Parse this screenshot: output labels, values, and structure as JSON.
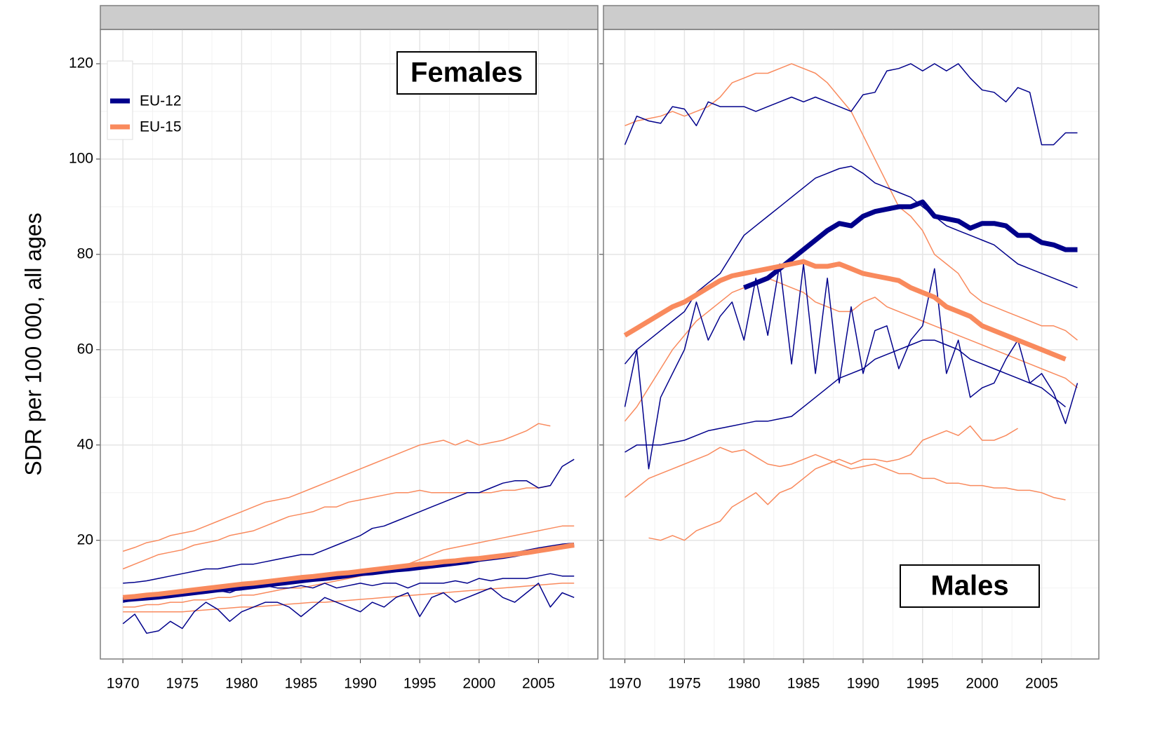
{
  "chart_data": [
    {
      "type": "line",
      "title": "Females",
      "ylabel": "SDR per 100 000,  all ages",
      "x": [
        1970,
        1971,
        1972,
        1973,
        1974,
        1975,
        1976,
        1977,
        1978,
        1979,
        1980,
        1981,
        1982,
        1983,
        1984,
        1985,
        1986,
        1987,
        1988,
        1989,
        1990,
        1991,
        1992,
        1993,
        1994,
        1995,
        1996,
        1997,
        1998,
        1999,
        2000,
        2001,
        2002,
        2003,
        2004,
        2005,
        2006,
        2007,
        2008
      ],
      "xlim": [
        1968.1,
        2010
      ],
      "xticks": [
        1970,
        1975,
        1980,
        1985,
        1990,
        1995,
        2000,
        2005
      ],
      "ylim": [
        -4.9,
        127.2
      ],
      "yticks": [
        20,
        40,
        60,
        80,
        100,
        120
      ],
      "grid": true,
      "legend": "top-left",
      "series": [
        {
          "color": "#f98a5d",
          "line_width": 1.5,
          "values": [
            17.7,
            18.5,
            19.5,
            20,
            21,
            21.5,
            22,
            23,
            24,
            25,
            26,
            27,
            28,
            28.5,
            29,
            30,
            31,
            32,
            33,
            34,
            35,
            36,
            37,
            38,
            39,
            40,
            40.5,
            41,
            40,
            41,
            40,
            40.5,
            41,
            42,
            43,
            44.5,
            44,
            null,
            null
          ]
        },
        {
          "color": "#f98a5d",
          "line_width": 1.5,
          "values": [
            14,
            15,
            16,
            17,
            17.5,
            18,
            19,
            19.5,
            20,
            21,
            21.5,
            22,
            23,
            24,
            25,
            25.5,
            26,
            27,
            27,
            28,
            28.5,
            29,
            29.5,
            30,
            30,
            30.5,
            30,
            30,
            30,
            30,
            30,
            30,
            30.5,
            30.5,
            31,
            31,
            31.5,
            null,
            null
          ]
        },
        {
          "color": "#f98a5d",
          "line_width": 1.5,
          "values": [
            6,
            6,
            6.5,
            6.5,
            7,
            7,
            7.5,
            7.5,
            8,
            8,
            8.5,
            8.5,
            9,
            9.5,
            10,
            10,
            10.5,
            11,
            11.5,
            12,
            12.5,
            13,
            13.5,
            14,
            15,
            16,
            17,
            18,
            18.5,
            19,
            19.5,
            20,
            20.5,
            21,
            21.5,
            22,
            22.5,
            23,
            23
          ]
        },
        {
          "color": "#f98a5d",
          "line_width": 1.5,
          "values": [
            5,
            5,
            5,
            5,
            5,
            5,
            5.2,
            5.4,
            5.6,
            5.8,
            6,
            6,
            6.2,
            6.4,
            6.6,
            6.8,
            7,
            7,
            7.2,
            7.4,
            7.6,
            7.8,
            8,
            8.2,
            8.4,
            8.6,
            8.8,
            9,
            9.2,
            9.4,
            9.6,
            9.8,
            10,
            10.2,
            10.4,
            10.6,
            10.8,
            11,
            11
          ]
        },
        {
          "color": "#00008b",
          "line_width": 1.5,
          "values": [
            11,
            11.2,
            11.5,
            12,
            12.5,
            13,
            13.5,
            14,
            14,
            14.5,
            15,
            15,
            15.5,
            16,
            16.5,
            17,
            17,
            18,
            19,
            20,
            21,
            22.5,
            23,
            24,
            25,
            26,
            27,
            28,
            29,
            30,
            30,
            31,
            32,
            32.5,
            32.5,
            31,
            31.5,
            35.5,
            37
          ]
        },
        {
          "color": "#00008b",
          "line_width": 1.5,
          "values": [
            2.5,
            4.5,
            0.5,
            1,
            3,
            1.5,
            5,
            7,
            5.5,
            3,
            5,
            6,
            7,
            7,
            6,
            4,
            6,
            8,
            7,
            6,
            5,
            7,
            6,
            8,
            9,
            4,
            8,
            9,
            7,
            8,
            9,
            10,
            8,
            7,
            9,
            11,
            6,
            9,
            8
          ]
        },
        {
          "color": "#00008b",
          "line_width": 1.5,
          "values": [
            7,
            7.5,
            8,
            8,
            8.5,
            8.5,
            9,
            9,
            9.5,
            9,
            10,
            10,
            10.5,
            10,
            10,
            10.5,
            10,
            11,
            10,
            10.5,
            11,
            10.5,
            11,
            11,
            10,
            11,
            11,
            11,
            11.5,
            11,
            12,
            11.5,
            12,
            12,
            12,
            12.5,
            13,
            12.5,
            12.5
          ]
        },
        {
          "name": "EU-12",
          "color": "#00008b",
          "line_width": 7,
          "values": [
            7.5,
            7.7,
            7.9,
            8.1,
            8.4,
            8.7,
            9.0,
            9.3,
            9.6,
            9.8,
            10.0,
            10.3,
            10.6,
            10.9,
            11.2,
            11.5,
            11.8,
            12.0,
            12.3,
            12.6,
            13.0,
            13.2,
            13.5,
            13.8,
            14.0,
            14.3,
            14.6,
            14.9,
            15.2,
            15.5,
            16.0,
            16.3,
            16.6,
            17.0,
            17.5,
            18.0,
            18.4,
            18.8,
            19.0
          ]
        },
        {
          "name": "EU-15",
          "color": "#f98a5d",
          "line_width": 7,
          "values": [
            8.0,
            8.2,
            8.5,
            8.7,
            9.0,
            9.3,
            9.6,
            9.9,
            10.2,
            10.5,
            10.8,
            11.0,
            11.3,
            11.6,
            11.9,
            12.2,
            12.4,
            12.7,
            13.0,
            13.2,
            13.5,
            13.8,
            14.1,
            14.4,
            14.7,
            15.0,
            15.2,
            15.5,
            15.7,
            16.0,
            16.2,
            16.5,
            16.8,
            17.1,
            17.4,
            17.8,
            18.2,
            18.6,
            19.0
          ]
        }
      ]
    },
    {
      "type": "line",
      "title": "Males",
      "x": [
        1970,
        1971,
        1972,
        1973,
        1974,
        1975,
        1976,
        1977,
        1978,
        1979,
        1980,
        1981,
        1982,
        1983,
        1984,
        1985,
        1986,
        1987,
        1988,
        1989,
        1990,
        1991,
        1992,
        1993,
        1994,
        1995,
        1996,
        1997,
        1998,
        1999,
        2000,
        2001,
        2002,
        2003,
        2004,
        2005,
        2006,
        2007,
        2008
      ],
      "xlim": [
        1968.2,
        2009.8
      ],
      "xticks": [
        1970,
        1975,
        1980,
        1985,
        1990,
        1995,
        2000,
        2005
      ],
      "ylim": [
        -4.9,
        127.2
      ],
      "yticks": [
        20,
        40,
        60,
        80,
        100,
        120
      ],
      "grid": true,
      "series": [
        {
          "color": "#f98a5d",
          "line_width": 1.5,
          "values": [
            107,
            108,
            108.5,
            109,
            110,
            109,
            110,
            111,
            113,
            116,
            117,
            118,
            118,
            119,
            120,
            119,
            118,
            116,
            113,
            110,
            105,
            100,
            95,
            90,
            88,
            85,
            80,
            78,
            76,
            72,
            70,
            69,
            68,
            67,
            66,
            65,
            65,
            64,
            62
          ]
        },
        {
          "color": "#f98a5d",
          "line_width": 1.5,
          "values": [
            29,
            31,
            33,
            34,
            35,
            36,
            37,
            38,
            39.5,
            38.5,
            39,
            37.5,
            36,
            35.5,
            36,
            37,
            38,
            37,
            36,
            35,
            35.5,
            36,
            35,
            34,
            34,
            33,
            33,
            32,
            32,
            31.5,
            31.5,
            31,
            31,
            30.5,
            30.5,
            30,
            29,
            28.5,
            null
          ]
        },
        {
          "color": "#f98a5d",
          "line_width": 1.5,
          "values": [
            null,
            null,
            20.5,
            20,
            21,
            20,
            22,
            23,
            24,
            27,
            28.5,
            30,
            27.5,
            30,
            31,
            33,
            35,
            36,
            37,
            36,
            37,
            37,
            36.5,
            37,
            38,
            41,
            42,
            43,
            42,
            44,
            41,
            41,
            42,
            43.5,
            null,
            null,
            null,
            null,
            null
          ]
        },
        {
          "color": "#f98a5d",
          "line_width": 1.5,
          "values": [
            45,
            48,
            52,
            56,
            60,
            63,
            66,
            68,
            70,
            72,
            73,
            74,
            75,
            74,
            73,
            72,
            70,
            69,
            68,
            68,
            70,
            71,
            69,
            68,
            67,
            66,
            65,
            64,
            63,
            62,
            61,
            60,
            59,
            58,
            57,
            56,
            55,
            54,
            52
          ]
        },
        {
          "color": "#00008b",
          "line_width": 1.5,
          "values": [
            103,
            109,
            108,
            107.5,
            111,
            110.5,
            107,
            112,
            111,
            111,
            111,
            110,
            111,
            112,
            113,
            112,
            113,
            112,
            111,
            110,
            113.5,
            114,
            118.5,
            119,
            120,
            118.5,
            120,
            118.5,
            120,
            117,
            114.5,
            114,
            112,
            115,
            114,
            103,
            103,
            105.5,
            105.5
          ]
        },
        {
          "color": "#00008b",
          "line_width": 1.5,
          "values": [
            38.5,
            40,
            40,
            40,
            40.5,
            41,
            42,
            43,
            43.5,
            44,
            44.5,
            45,
            45,
            45.5,
            46,
            48,
            50,
            52,
            54,
            55,
            56,
            58,
            59,
            60,
            61,
            62,
            62,
            61,
            60,
            58,
            57,
            56,
            55,
            54,
            53,
            52,
            50,
            48,
            null
          ]
        },
        {
          "color": "#00008b",
          "line_width": 1.5,
          "values": [
            48,
            60,
            35,
            50,
            55,
            60,
            70,
            62,
            67,
            70,
            62,
            75,
            63,
            78,
            57,
            78,
            55,
            75,
            53,
            69,
            55,
            64,
            65,
            56,
            62,
            65,
            77,
            55,
            62,
            50,
            52,
            53,
            58,
            62,
            53,
            55,
            51,
            44.5,
            53
          ]
        },
        {
          "color": "#00008b",
          "line_width": 1.5,
          "values": [
            57,
            60,
            62,
            64,
            66,
            68,
            72,
            74,
            76,
            80,
            84,
            86,
            88,
            90,
            92,
            94,
            96,
            97,
            98,
            98.5,
            97,
            95,
            94,
            93,
            92,
            90,
            88,
            86,
            85,
            84,
            83,
            82,
            80,
            78,
            77,
            76,
            75,
            74,
            73
          ]
        },
        {
          "name": "EU-12",
          "color": "#00008b",
          "line_width": 7,
          "values": [
            null,
            null,
            null,
            null,
            null,
            null,
            null,
            null,
            null,
            null,
            73,
            74,
            75,
            77,
            79,
            81,
            83,
            85,
            86.5,
            86,
            88,
            89,
            89.5,
            90,
            90,
            91,
            88,
            87.5,
            87,
            85.5,
            86.5,
            86.5,
            86,
            84,
            84,
            82.5,
            82,
            81,
            81
          ]
        },
        {
          "name": "EU-15",
          "color": "#f98a5d",
          "line_width": 7,
          "values": [
            63,
            64.5,
            66,
            67.5,
            69,
            70,
            71.5,
            73,
            74.5,
            75.5,
            76,
            76.5,
            77,
            77.5,
            78,
            78.5,
            77.5,
            77.5,
            78,
            77,
            76,
            75.5,
            75,
            74.5,
            73,
            72,
            71,
            69,
            68,
            67,
            65,
            64,
            63,
            62,
            61,
            60,
            59,
            58,
            null
          ]
        }
      ]
    }
  ]
}
